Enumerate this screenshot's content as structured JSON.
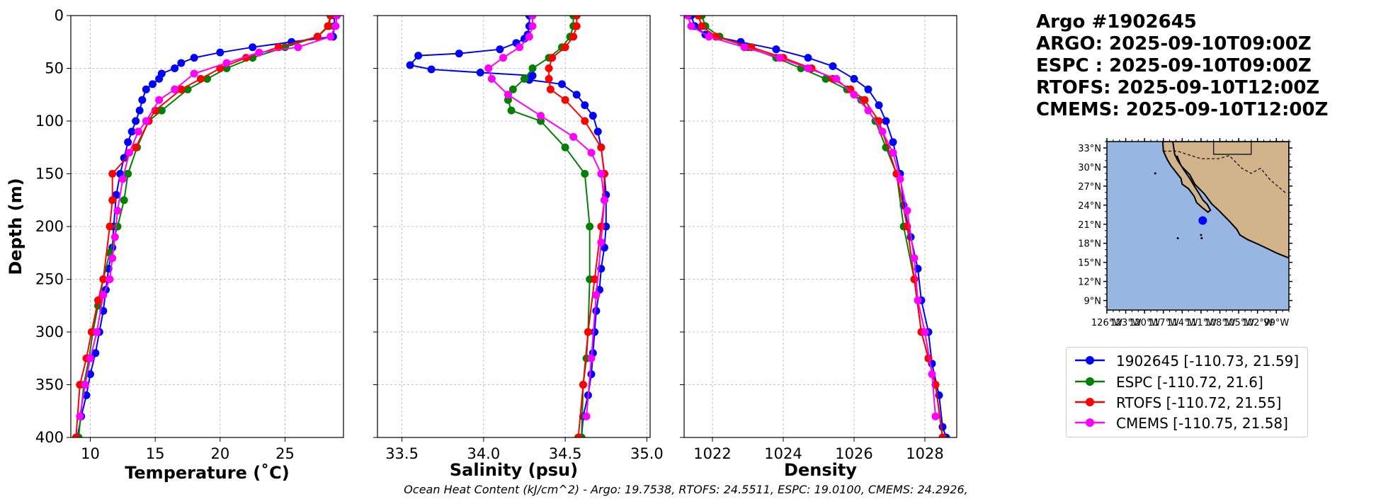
{
  "header": {
    "lines": [
      "Argo #1902645",
      "ARGO: 2025-09-10T09:00Z",
      "ESPC : 2025-09-10T09:00Z",
      "RTOFS: 2025-09-10T12:00Z",
      "CMEMS: 2025-09-10T12:00Z"
    ]
  },
  "footer": {
    "note": "Ocean Heat Content (kJ/cm^2) - Argo: 19.7538,  RTOFS: 24.5511,  ESPC: 19.0100,  CMEMS: 24.2926,"
  },
  "legend": {
    "entries": [
      {
        "label": "1902645 [-110.73, 21.59]",
        "color": "#0000ff"
      },
      {
        "label": "ESPC [-110.72, 21.6]",
        "color": "#008000"
      },
      {
        "label": "RTOFS [-110.72, 21.55]",
        "color": "#ff0000"
      },
      {
        "label": "CMEMS [-110.75, 21.58]",
        "color": "#ff00ff"
      }
    ]
  },
  "map": {
    "lat_labels": [
      "33°N",
      "30°N",
      "27°N",
      "24°N",
      "21°N",
      "18°N",
      "15°N",
      "12°N",
      "9°N"
    ],
    "lon_labels": [
      "126°W",
      "123°W",
      "120°W",
      "117°W",
      "114°W",
      "111°W",
      "108°W",
      "105°W",
      "102°W",
      "99°W"
    ],
    "lon_range": [
      -126,
      -97
    ],
    "lat_range": [
      7.5,
      34
    ],
    "float_position": {
      "lon": -110.73,
      "lat": 21.59
    },
    "ocean_color": "#97b6e1",
    "land_color": "#d2b48c"
  },
  "chart_data": [
    {
      "type": "line",
      "xlabel": "Temperature (˚C)",
      "ylabel": "Depth (m)",
      "xlim": [
        8.5,
        29.5
      ],
      "ylim": [
        400,
        0
      ],
      "xticks": [
        "10",
        "15",
        "20",
        "25"
      ],
      "xtick_values": [
        10,
        15,
        20,
        25
      ],
      "yticks": [
        "0",
        "50",
        "100",
        "150",
        "200",
        "250",
        "300",
        "350",
        "400"
      ],
      "ytick_values": [
        0,
        50,
        100,
        150,
        200,
        250,
        300,
        350,
        400
      ],
      "grid": true,
      "series": [
        {
          "name": "1902645",
          "color": "#0000ff",
          "x": [
            28.8,
            28.8,
            28.7,
            25.5,
            22.5,
            20.0,
            18.0,
            17.0,
            16.5,
            15.5,
            15.3,
            14.8,
            14.3,
            14.0,
            13.8,
            13.5,
            13.2,
            12.9,
            12.6,
            12.3,
            12.0,
            11.8,
            11.7,
            11.4,
            11.2,
            11.0,
            10.7,
            10.4,
            10.0,
            9.7,
            9.3,
            9.0
          ],
          "y": [
            0,
            10,
            20,
            25,
            30,
            35,
            40,
            45,
            50,
            55,
            60,
            65,
            70,
            80,
            90,
            100,
            110,
            120,
            135,
            150,
            170,
            200,
            220,
            240,
            260,
            280,
            300,
            320,
            340,
            360,
            380,
            400
          ]
        },
        {
          "name": "ESPC",
          "color": "#008000",
          "x": [
            28.5,
            28.4,
            27.5,
            25.0,
            22.5,
            20.5,
            19.0,
            17.5,
            15.5,
            14.5,
            13.6,
            12.9,
            12.6,
            12.1,
            11.5,
            11.0,
            10.6,
            10.2,
            9.9,
            9.5,
            9.1
          ],
          "y": [
            0,
            10,
            20,
            30,
            40,
            50,
            60,
            70,
            90,
            100,
            125,
            150,
            175,
            200,
            225,
            250,
            275,
            300,
            325,
            350,
            400
          ]
        },
        {
          "name": "RTOFS",
          "color": "#ff0000",
          "x": [
            28.5,
            28.3,
            27.5,
            24.5,
            22.0,
            20.0,
            18.5,
            17.0,
            15.0,
            14.5,
            13.5,
            11.7,
            11.7,
            11.5,
            11.0,
            10.6,
            10.1,
            9.7,
            9.2,
            8.9
          ],
          "y": [
            0,
            10,
            20,
            30,
            40,
            50,
            60,
            70,
            90,
            100,
            125,
            150,
            175,
            200,
            250,
            270,
            300,
            325,
            350,
            400
          ]
        },
        {
          "name": "CMEMS",
          "color": "#ff00ff",
          "x": [
            29.0,
            28.9,
            28.5,
            26.0,
            23.0,
            20.5,
            18.0,
            16.5,
            15.3,
            14.3,
            13.7,
            13.0,
            12.5,
            12.1,
            11.9,
            11.7,
            11.5,
            11.0,
            10.5,
            10.0,
            9.6,
            9.2
          ],
          "y": [
            0,
            10,
            20,
            30,
            35,
            45,
            55,
            70,
            80,
            100,
            110,
            130,
            155,
            185,
            210,
            230,
            250,
            265,
            300,
            325,
            350,
            380
          ]
        }
      ]
    },
    {
      "type": "line",
      "xlabel": "Salinity (psu)",
      "xlim": [
        33.35,
        35.02
      ],
      "ylim": [
        400,
        0
      ],
      "xticks": [
        "33.5",
        "34.0",
        "34.5",
        "35.0"
      ],
      "xtick_values": [
        33.5,
        34.0,
        34.5,
        35.0
      ],
      "grid": true,
      "series": [
        {
          "name": "1902645",
          "color": "#0000ff",
          "x": [
            34.28,
            34.28,
            34.27,
            34.25,
            34.2,
            34.1,
            33.85,
            33.6,
            33.55,
            33.68,
            33.98,
            34.3,
            34.28,
            34.48,
            34.57,
            34.62,
            34.67,
            34.7,
            34.72,
            34.74,
            34.75,
            34.75,
            34.74,
            34.72,
            34.71,
            34.69,
            34.68,
            34.67,
            34.66,
            34.64,
            34.61,
            34.6
          ],
          "y": [
            0,
            10,
            18,
            22,
            26,
            32,
            36,
            38,
            47,
            51,
            54,
            57,
            61,
            65,
            75,
            85,
            95,
            110,
            125,
            150,
            170,
            200,
            220,
            240,
            260,
            280,
            300,
            320,
            340,
            360,
            380,
            400
          ]
        },
        {
          "name": "ESPC",
          "color": "#008000",
          "x": [
            34.55,
            34.55,
            34.53,
            34.48,
            34.4,
            34.3,
            34.25,
            34.18,
            34.15,
            34.17,
            34.35,
            34.5,
            34.62,
            34.65,
            34.65,
            34.64,
            34.63,
            34.61,
            34.6
          ],
          "y": [
            0,
            10,
            20,
            30,
            40,
            50,
            60,
            70,
            80,
            90,
            100,
            125,
            150,
            200,
            250,
            300,
            325,
            350,
            400
          ]
        },
        {
          "name": "RTOFS",
          "color": "#ff0000",
          "x": [
            34.57,
            34.57,
            34.55,
            34.5,
            34.42,
            34.4,
            34.4,
            34.41,
            34.5,
            34.62,
            34.72,
            34.74,
            34.74,
            34.72,
            34.68,
            34.64,
            34.61,
            34.58
          ],
          "y": [
            0,
            10,
            20,
            30,
            40,
            50,
            60,
            70,
            80,
            100,
            125,
            150,
            175,
            200,
            250,
            300,
            350,
            400
          ]
        },
        {
          "name": "CMEMS",
          "color": "#ff00ff",
          "x": [
            34.3,
            34.3,
            34.28,
            34.22,
            34.12,
            34.03,
            34.05,
            34.15,
            34.35,
            34.55,
            34.66,
            34.72,
            34.74,
            34.72,
            34.69,
            34.66,
            34.63
          ],
          "y": [
            0,
            10,
            20,
            30,
            40,
            50,
            60,
            75,
            95,
            115,
            130,
            150,
            175,
            215,
            265,
            325,
            380
          ]
        }
      ]
    },
    {
      "type": "line",
      "xlabel": "Density",
      "xlim": [
        1021.2,
        1028.9
      ],
      "ylim": [
        400,
        0
      ],
      "xticks": [
        "1022",
        "1024",
        "1026",
        "1028"
      ],
      "xtick_values": [
        1022,
        1024,
        1026,
        1028
      ],
      "grid": true,
      "series": [
        {
          "name": "1902645",
          "color": "#0000ff",
          "x": [
            1021.4,
            1021.5,
            1021.8,
            1022.8,
            1023.8,
            1024.7,
            1025.4,
            1026.0,
            1026.4,
            1026.7,
            1026.9,
            1027.1,
            1027.3,
            1027.4,
            1027.6,
            1027.8,
            1027.9,
            1028.1,
            1028.2,
            1028.4,
            1028.5,
            1028.6
          ],
          "y": [
            0,
            10,
            18,
            25,
            32,
            40,
            48,
            60,
            70,
            85,
            100,
            120,
            150,
            180,
            210,
            240,
            270,
            300,
            330,
            360,
            390,
            400
          ]
        },
        {
          "name": "ESPC",
          "color": "#008000",
          "x": [
            1021.7,
            1021.8,
            1022.2,
            1023.0,
            1023.8,
            1024.5,
            1025.2,
            1025.8,
            1026.2,
            1026.6,
            1026.9,
            1027.2,
            1027.4,
            1027.7,
            1027.9,
            1028.1,
            1028.3,
            1028.5
          ],
          "y": [
            0,
            10,
            20,
            30,
            40,
            50,
            60,
            70,
            80,
            100,
            125,
            150,
            200,
            250,
            300,
            325,
            350,
            400
          ]
        },
        {
          "name": "RTOFS",
          "color": "#ff0000",
          "x": [
            1021.6,
            1021.7,
            1022.1,
            1023.1,
            1024.0,
            1024.8,
            1025.4,
            1025.9,
            1026.3,
            1026.7,
            1027.2,
            1027.5,
            1027.7,
            1027.9,
            1028.1,
            1028.3,
            1028.5
          ],
          "y": [
            0,
            10,
            20,
            30,
            40,
            50,
            60,
            70,
            80,
            100,
            150,
            200,
            250,
            300,
            325,
            350,
            400
          ]
        },
        {
          "name": "CMEMS",
          "color": "#ff00ff",
          "x": [
            1021.3,
            1021.4,
            1021.9,
            1022.9,
            1023.9,
            1024.7,
            1025.5,
            1026.0,
            1026.4,
            1026.8,
            1027.1,
            1027.3,
            1027.5,
            1027.7,
            1027.8,
            1028.0,
            1028.2,
            1028.3
          ],
          "y": [
            0,
            10,
            20,
            30,
            40,
            50,
            60,
            75,
            90,
            110,
            130,
            155,
            185,
            230,
            270,
            300,
            340,
            380
          ]
        }
      ]
    }
  ]
}
